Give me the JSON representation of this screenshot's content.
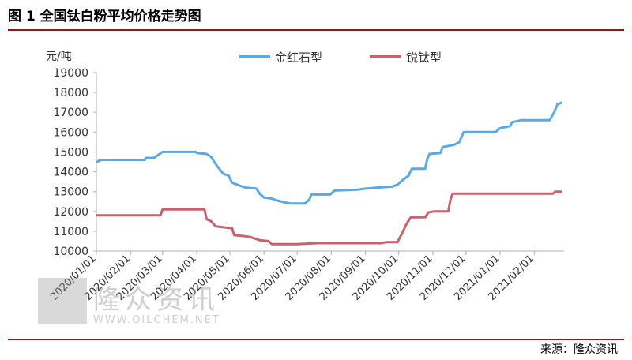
{
  "figure": {
    "title": "图 1  全国钛白粉平均价格走势图",
    "source": "来源：隆众资讯"
  },
  "watermark": {
    "text": "隆众资讯",
    "url": "WWW.OILCHEM.NET"
  },
  "chart_data": {
    "type": "line",
    "title": "",
    "xlabel": "",
    "ylabel": "元/吨",
    "ylim": [
      10000,
      19000
    ],
    "yticks": [
      10000,
      11000,
      12000,
      13000,
      14000,
      15000,
      16000,
      17000,
      18000,
      19000
    ],
    "xlim": [
      "2020-01-01",
      "2021-02-28"
    ],
    "xticks": [
      "2020/01/01",
      "2020/02/01",
      "2020/03/01",
      "2020/04/01",
      "2020/05/01",
      "2020/06/01",
      "2020/07/01",
      "2020/08/01",
      "2020/09/01",
      "2020/10/01",
      "2020/11/01",
      "2020/12/01",
      "2021/01/01",
      "2021/02/01"
    ],
    "legend_position": "top",
    "grid": false,
    "series": [
      {
        "name": "金红石型",
        "color": "#5aa8e6",
        "points": [
          [
            "2020-01-01",
            14450
          ],
          [
            "2020-01-03",
            14550
          ],
          [
            "2020-01-06",
            14600
          ],
          [
            "2020-02-14",
            14600
          ],
          [
            "2020-02-15",
            14700
          ],
          [
            "2020-02-22",
            14700
          ],
          [
            "2020-02-26",
            14850
          ],
          [
            "2020-03-01",
            15000
          ],
          [
            "2020-03-31",
            15000
          ],
          [
            "2020-04-01",
            14950
          ],
          [
            "2020-04-10",
            14900
          ],
          [
            "2020-04-14",
            14750
          ],
          [
            "2020-04-18",
            14400
          ],
          [
            "2020-04-22",
            14100
          ],
          [
            "2020-04-25",
            13900
          ],
          [
            "2020-04-30",
            13800
          ],
          [
            "2020-05-03",
            13450
          ],
          [
            "2020-05-10",
            13300
          ],
          [
            "2020-05-15",
            13200
          ],
          [
            "2020-05-25",
            13150
          ],
          [
            "2020-05-28",
            12900
          ],
          [
            "2020-06-01",
            12700
          ],
          [
            "2020-06-08",
            12650
          ],
          [
            "2020-06-13",
            12550
          ],
          [
            "2020-06-20",
            12450
          ],
          [
            "2020-06-25",
            12400
          ],
          [
            "2020-07-08",
            12400
          ],
          [
            "2020-07-12",
            12600
          ],
          [
            "2020-07-14",
            12850
          ],
          [
            "2020-07-31",
            12850
          ],
          [
            "2020-08-04",
            13050
          ],
          [
            "2020-08-25",
            13100
          ],
          [
            "2020-09-01",
            13150
          ],
          [
            "2020-09-12",
            13200
          ],
          [
            "2020-09-25",
            13250
          ],
          [
            "2020-09-30",
            13350
          ],
          [
            "2020-10-05",
            13600
          ],
          [
            "2020-10-10",
            13800
          ],
          [
            "2020-10-13",
            14150
          ],
          [
            "2020-10-25",
            14150
          ],
          [
            "2020-10-27",
            14650
          ],
          [
            "2020-10-29",
            14900
          ],
          [
            "2020-11-08",
            14950
          ],
          [
            "2020-11-10",
            15250
          ],
          [
            "2020-11-15",
            15300
          ],
          [
            "2020-11-20",
            15350
          ],
          [
            "2020-11-25",
            15500
          ],
          [
            "2020-11-29",
            16000
          ],
          [
            "2020-12-28",
            16000
          ],
          [
            "2021-01-01",
            16200
          ],
          [
            "2021-01-10",
            16300
          ],
          [
            "2021-01-12",
            16500
          ],
          [
            "2021-01-20",
            16600
          ],
          [
            "2021-02-15",
            16600
          ],
          [
            "2021-02-19",
            17000
          ],
          [
            "2021-02-22",
            17400
          ],
          [
            "2021-02-26",
            17500
          ]
        ]
      },
      {
        "name": "锐钛型",
        "color": "#c9626c",
        "points": [
          [
            "2020-01-01",
            11800
          ],
          [
            "2020-02-28",
            11800
          ],
          [
            "2020-03-01",
            12100
          ],
          [
            "2020-03-20",
            12100
          ],
          [
            "2020-04-08",
            12100
          ],
          [
            "2020-04-10",
            11600
          ],
          [
            "2020-04-14",
            11500
          ],
          [
            "2020-04-18",
            11250
          ],
          [
            "2020-04-25",
            11200
          ],
          [
            "2020-05-03",
            11150
          ],
          [
            "2020-05-05",
            10800
          ],
          [
            "2020-05-15",
            10750
          ],
          [
            "2020-05-20",
            10700
          ],
          [
            "2020-05-28",
            10550
          ],
          [
            "2020-06-05",
            10500
          ],
          [
            "2020-06-08",
            10350
          ],
          [
            "2020-07-01",
            10350
          ],
          [
            "2020-07-20",
            10400
          ],
          [
            "2020-08-15",
            10400
          ],
          [
            "2020-09-15",
            10400
          ],
          [
            "2020-09-20",
            10450
          ],
          [
            "2020-09-30",
            10450
          ],
          [
            "2020-10-05",
            11000
          ],
          [
            "2020-10-08",
            11350
          ],
          [
            "2020-10-12",
            11700
          ],
          [
            "2020-10-25",
            11700
          ],
          [
            "2020-10-28",
            11950
          ],
          [
            "2020-11-02",
            12000
          ],
          [
            "2020-11-15",
            12000
          ],
          [
            "2020-11-17",
            12600
          ],
          [
            "2020-11-19",
            12900
          ],
          [
            "2021-02-18",
            12900
          ],
          [
            "2021-02-20",
            13000
          ],
          [
            "2021-02-26",
            13000
          ]
        ]
      }
    ]
  }
}
